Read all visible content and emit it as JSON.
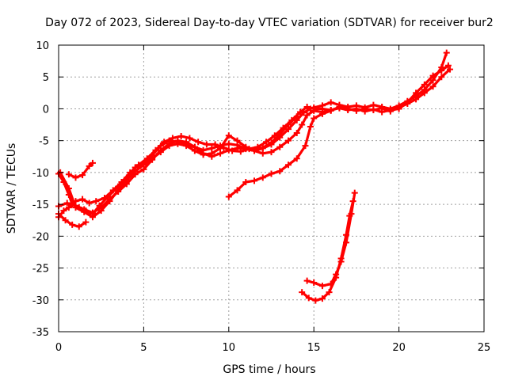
{
  "chart_data": {
    "type": "scatter",
    "title": "Day 072 of 2023, Sidereal Day-to-day VTEC variation (SDTVAR) for receiver bur2",
    "xlabel": "GPS time / hours",
    "ylabel": "SDTVAR / TECUs",
    "xlim": [
      0,
      25
    ],
    "ylim": [
      -35,
      10
    ],
    "xticks": [
      0,
      5,
      10,
      15,
      20,
      25
    ],
    "yticks": [
      -35,
      -30,
      -25,
      -20,
      -15,
      -10,
      -5,
      0,
      5,
      10
    ],
    "grid": true,
    "legend": "none",
    "marker": "plus",
    "color": "#ff0000",
    "series": [
      {
        "name": "track-1",
        "points": [
          [
            0.0,
            -10.2
          ],
          [
            0.3,
            -11.5
          ],
          [
            0.6,
            -13.5
          ],
          [
            0.8,
            -15.0
          ],
          [
            1.2,
            -15.5
          ],
          [
            1.6,
            -16.0
          ],
          [
            2.0,
            -16.5
          ],
          [
            2.4,
            -15.2
          ],
          [
            2.9,
            -13.8
          ],
          [
            3.5,
            -12.2
          ],
          [
            4.0,
            -10.8
          ],
          [
            4.5,
            -9.2
          ],
          [
            5.0,
            -8.5
          ],
          [
            5.5,
            -7.3
          ],
          [
            6.0,
            -5.8
          ],
          [
            6.5,
            -5.0
          ],
          [
            7.0,
            -5.2
          ],
          [
            7.5,
            -5.6
          ],
          [
            8.0,
            -6.0
          ],
          [
            8.5,
            -6.5
          ],
          [
            9.0,
            -6.2
          ],
          [
            9.5,
            -5.8
          ],
          [
            10.0,
            -5.5
          ],
          [
            10.5,
            -5.7
          ],
          [
            11.0,
            -6.3
          ],
          [
            11.5,
            -6.6
          ],
          [
            12.0,
            -6.2
          ],
          [
            12.5,
            -5.6
          ],
          [
            13.0,
            -4.5
          ],
          [
            13.5,
            -3.2
          ],
          [
            14.0,
            -1.8
          ],
          [
            14.4,
            -0.6
          ],
          [
            14.8,
            0.0
          ],
          [
            15.0,
            0.2
          ],
          [
            15.5,
            0.5
          ],
          [
            16.0,
            1.0
          ],
          [
            16.5,
            0.6
          ],
          [
            17.0,
            0.3
          ],
          [
            17.5,
            0.5
          ],
          [
            18.0,
            0.2
          ],
          [
            18.5,
            0.6
          ],
          [
            19.0,
            0.3
          ],
          [
            19.5,
            0.0
          ],
          [
            20.0,
            0.5
          ],
          [
            20.5,
            1.2
          ],
          [
            21.0,
            2.0
          ],
          [
            21.5,
            3.0
          ],
          [
            22.0,
            4.5
          ],
          [
            22.5,
            6.5
          ],
          [
            22.8,
            8.8
          ]
        ]
      },
      {
        "name": "track-2",
        "points": [
          [
            0.0,
            -17.0
          ],
          [
            0.3,
            -16.0
          ],
          [
            0.6,
            -15.5
          ],
          [
            1.0,
            -14.5
          ],
          [
            1.4,
            -14.2
          ],
          [
            1.8,
            -14.8
          ],
          [
            2.2,
            -14.5
          ],
          [
            2.7,
            -14.0
          ],
          [
            3.2,
            -12.8
          ],
          [
            3.7,
            -11.5
          ],
          [
            4.2,
            -10.0
          ],
          [
            4.7,
            -8.8
          ],
          [
            5.2,
            -7.8
          ],
          [
            5.7,
            -6.5
          ],
          [
            6.2,
            -5.2
          ],
          [
            6.7,
            -4.6
          ],
          [
            7.2,
            -4.3
          ],
          [
            7.7,
            -4.6
          ],
          [
            8.2,
            -5.2
          ],
          [
            8.7,
            -5.6
          ],
          [
            9.2,
            -5.6
          ],
          [
            9.7,
            -6.1
          ],
          [
            10.2,
            -6.6
          ],
          [
            10.7,
            -6.7
          ],
          [
            11.2,
            -6.3
          ],
          [
            11.7,
            -6.0
          ],
          [
            12.2,
            -5.2
          ],
          [
            12.7,
            -4.2
          ],
          [
            13.2,
            -3.0
          ],
          [
            13.7,
            -1.8
          ],
          [
            14.2,
            -0.5
          ],
          [
            14.6,
            0.3
          ],
          [
            15.0,
            0.0
          ],
          [
            15.5,
            0.0
          ],
          [
            16.0,
            -0.2
          ],
          [
            16.5,
            0.2
          ],
          [
            17.0,
            0.0
          ],
          [
            17.5,
            -0.3
          ],
          [
            18.0,
            0.0
          ],
          [
            18.5,
            -0.2
          ],
          [
            19.0,
            0.1
          ],
          [
            19.5,
            -0.4
          ],
          [
            20.0,
            0.2
          ],
          [
            20.5,
            0.8
          ],
          [
            21.0,
            1.5
          ],
          [
            21.5,
            2.5
          ],
          [
            22.0,
            3.5
          ],
          [
            22.5,
            5.0
          ],
          [
            23.0,
            6.2
          ]
        ]
      },
      {
        "name": "track-3",
        "points": [
          [
            0.0,
            -15.3
          ],
          [
            0.5,
            -14.8
          ],
          [
            1.0,
            -15.2
          ],
          [
            1.5,
            -15.8
          ],
          [
            2.0,
            -16.3
          ],
          [
            2.5,
            -15.5
          ],
          [
            3.0,
            -14.2
          ],
          [
            3.5,
            -13.0
          ],
          [
            4.0,
            -11.8
          ],
          [
            4.5,
            -10.3
          ],
          [
            5.0,
            -9.5
          ],
          [
            5.5,
            -8.0
          ],
          [
            6.0,
            -6.5
          ],
          [
            6.5,
            -5.5
          ],
          [
            7.0,
            -5.0
          ],
          [
            7.5,
            -5.2
          ],
          [
            8.0,
            -6.0
          ],
          [
            8.5,
            -7.0
          ],
          [
            9.0,
            -7.5
          ],
          [
            9.5,
            -7.0
          ],
          [
            10.0,
            -6.5
          ],
          [
            10.5,
            -6.2
          ],
          [
            11.0,
            -6.2
          ],
          [
            11.5,
            -6.6
          ],
          [
            12.0,
            -7.0
          ],
          [
            12.5,
            -6.8
          ],
          [
            13.0,
            -6.0
          ],
          [
            13.5,
            -5.0
          ],
          [
            14.0,
            -3.8
          ],
          [
            14.3,
            -2.5
          ],
          [
            14.6,
            -1.0
          ],
          [
            15.0,
            -0.3
          ],
          [
            15.5,
            -0.5
          ],
          [
            16.0,
            -0.2
          ],
          [
            16.5,
            0.1
          ],
          [
            17.0,
            -0.2
          ],
          [
            17.5,
            0.0
          ],
          [
            18.0,
            -0.4
          ],
          [
            18.5,
            -0.1
          ],
          [
            19.0,
            -0.5
          ],
          [
            19.5,
            -0.2
          ],
          [
            20.0,
            0.0
          ],
          [
            20.5,
            1.0
          ],
          [
            21.0,
            2.5
          ],
          [
            21.5,
            3.8
          ],
          [
            22.0,
            5.2
          ],
          [
            22.5,
            6.0
          ],
          [
            22.9,
            6.8
          ]
        ]
      },
      {
        "name": "track-4",
        "points": [
          [
            0.1,
            -10.0
          ],
          [
            0.6,
            -12.5
          ],
          [
            1.0,
            -15.5
          ],
          [
            1.5,
            -16.2
          ],
          [
            2.0,
            -17.0
          ],
          [
            2.5,
            -16.0
          ],
          [
            3.0,
            -14.5
          ],
          [
            3.5,
            -12.8
          ],
          [
            4.0,
            -11.2
          ],
          [
            4.5,
            -9.8
          ],
          [
            5.0,
            -8.8
          ],
          [
            5.5,
            -7.8
          ],
          [
            6.0,
            -6.8
          ],
          [
            6.5,
            -5.8
          ],
          [
            7.0,
            -5.5
          ],
          [
            7.5,
            -5.8
          ],
          [
            8.0,
            -6.6
          ],
          [
            8.5,
            -7.2
          ],
          [
            9.0,
            -7.0
          ],
          [
            9.5,
            -6.2
          ],
          [
            10.0,
            -4.2
          ],
          [
            10.5,
            -5.0
          ],
          [
            11.0,
            -6.0
          ],
          [
            11.5,
            -6.5
          ],
          [
            12.0,
            -6.1
          ],
          [
            12.5,
            -5.3
          ],
          [
            13.0,
            -4.0
          ],
          [
            13.5,
            -2.5
          ],
          [
            14.0,
            -1.2
          ]
        ]
      },
      {
        "name": "track-5",
        "points": [
          [
            0.0,
            -16.5
          ],
          [
            0.4,
            -17.5
          ],
          [
            0.8,
            -18.2
          ],
          [
            1.2,
            -18.5
          ],
          [
            1.6,
            -17.8
          ]
        ]
      },
      {
        "name": "track-6",
        "points": [
          [
            0.6,
            -10.3
          ],
          [
            1.0,
            -10.8
          ],
          [
            1.4,
            -10.4
          ],
          [
            1.8,
            -9.0
          ],
          [
            2.0,
            -8.5
          ]
        ]
      },
      {
        "name": "track-7",
        "points": [
          [
            10.0,
            -13.8
          ],
          [
            10.5,
            -12.8
          ],
          [
            11.0,
            -11.5
          ],
          [
            11.5,
            -11.3
          ],
          [
            12.0,
            -10.8
          ],
          [
            12.5,
            -10.2
          ],
          [
            13.0,
            -9.8
          ],
          [
            13.5,
            -8.8
          ],
          [
            14.0,
            -7.8
          ],
          [
            14.5,
            -5.8
          ],
          [
            14.8,
            -2.8
          ],
          [
            15.0,
            -1.5
          ],
          [
            15.5,
            -0.8
          ],
          [
            16.0,
            -0.3
          ],
          [
            16.5,
            0.3
          ]
        ]
      },
      {
        "name": "track-8",
        "points": [
          [
            14.6,
            -27.0
          ],
          [
            15.0,
            -27.3
          ],
          [
            15.5,
            -27.8
          ],
          [
            16.0,
            -27.5
          ],
          [
            16.3,
            -26.0
          ],
          [
            16.6,
            -24.0
          ],
          [
            16.9,
            -21.0
          ],
          [
            17.2,
            -16.5
          ],
          [
            17.4,
            -13.2
          ]
        ]
      },
      {
        "name": "track-9",
        "points": [
          [
            14.3,
            -28.8
          ],
          [
            14.7,
            -29.7
          ],
          [
            15.1,
            -30.1
          ],
          [
            15.5,
            -29.8
          ],
          [
            15.9,
            -28.8
          ],
          [
            16.3,
            -26.5
          ],
          [
            16.6,
            -23.5
          ],
          [
            16.9,
            -19.8
          ],
          [
            17.1,
            -16.8
          ],
          [
            17.3,
            -14.5
          ]
        ]
      }
    ]
  }
}
